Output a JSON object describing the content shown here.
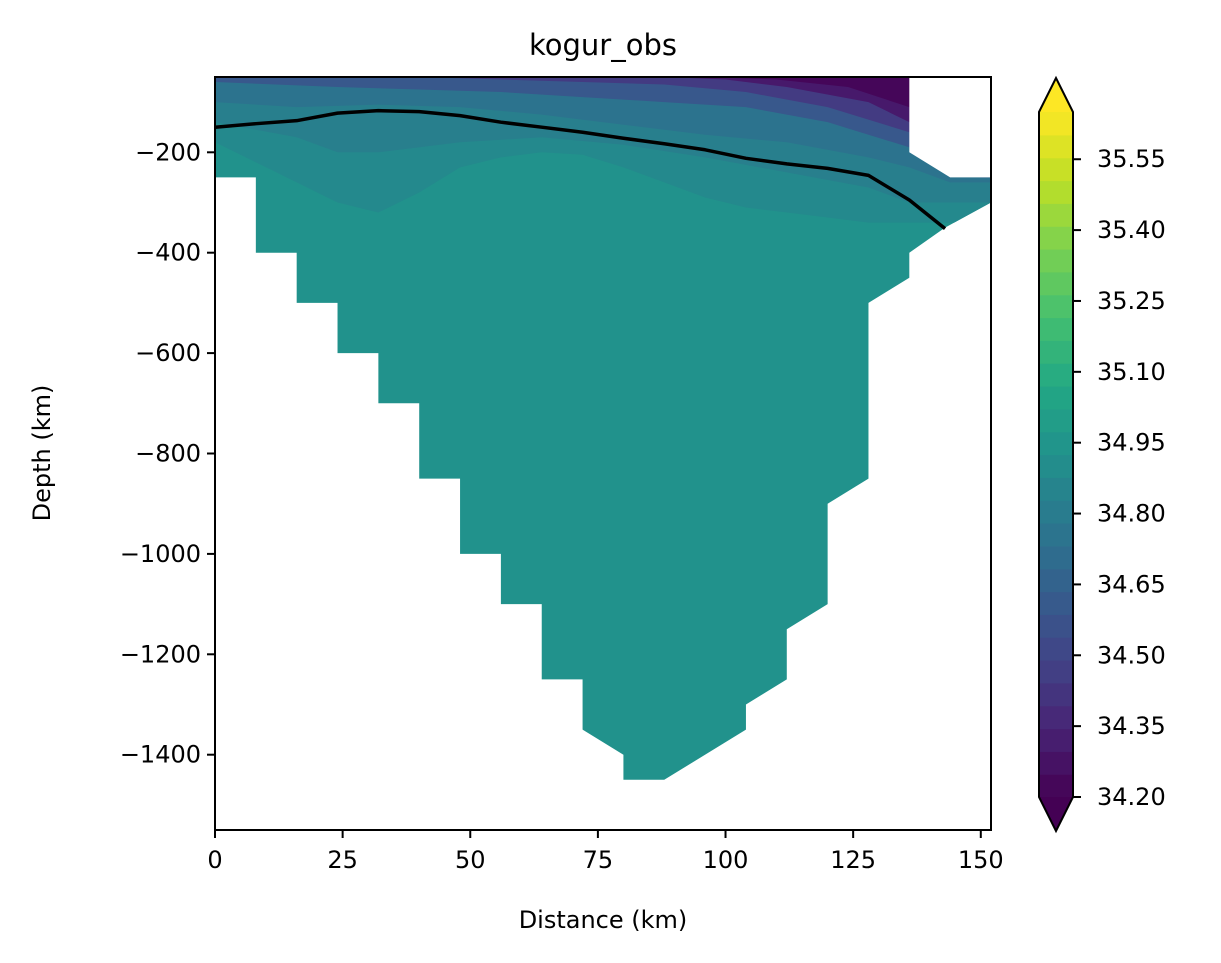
{
  "chart_data": {
    "type": "contourf",
    "title": "kogur_obs",
    "xlabel": "Distance (km)",
    "ylabel": "Depth (km)",
    "xlim": [
      0,
      152
    ],
    "ylim": [
      -1550,
      -50
    ],
    "xticks": [
      0,
      25,
      50,
      75,
      100,
      125,
      150
    ],
    "yticks": [
      -200,
      -400,
      -600,
      -800,
      -1000,
      -1200,
      -1400
    ],
    "colormap": "viridis",
    "colorbar": {
      "vmin": 34.2,
      "vmax": 35.65,
      "ticks": [
        34.2,
        34.35,
        34.5,
        34.65,
        34.8,
        34.95,
        35.1,
        35.25,
        35.4,
        35.55
      ],
      "tick_labels": [
        "34.20",
        "34.35",
        "34.50",
        "34.65",
        "34.80",
        "34.95",
        "35.10",
        "35.25",
        "35.40",
        "35.55"
      ],
      "extend": "both",
      "levels": 30
    },
    "bottom_boundary": [
      [
        0,
        -250
      ],
      [
        8,
        -250
      ],
      [
        8,
        -400
      ],
      [
        16,
        -400
      ],
      [
        16,
        -500
      ],
      [
        24,
        -500
      ],
      [
        24,
        -600
      ],
      [
        32,
        -600
      ],
      [
        32,
        -700
      ],
      [
        40,
        -700
      ],
      [
        40,
        -850
      ],
      [
        48,
        -850
      ],
      [
        48,
        -1000
      ],
      [
        56,
        -1000
      ],
      [
        56,
        -1100
      ],
      [
        64,
        -1100
      ],
      [
        64,
        -1250
      ],
      [
        72,
        -1250
      ],
      [
        72,
        -1350
      ],
      [
        80,
        -1400
      ],
      [
        80,
        -1450
      ],
      [
        88,
        -1450
      ],
      [
        104,
        -1350
      ],
      [
        104,
        -1300
      ],
      [
        112,
        -1250
      ],
      [
        112,
        -1150
      ],
      [
        120,
        -1100
      ],
      [
        120,
        -900
      ],
      [
        128,
        -850
      ],
      [
        128,
        -500
      ],
      [
        136,
        -450
      ],
      [
        136,
        -400
      ],
      [
        143,
        -350
      ],
      [
        152,
        -300
      ]
    ],
    "top_right_gap": [
      [
        136,
        -50
      ],
      [
        152,
        -50
      ],
      [
        152,
        -250
      ],
      [
        144,
        -250
      ],
      [
        136,
        -200
      ]
    ],
    "salinity_layers": [
      {
        "value": 34.93,
        "region": "deep"
      },
      {
        "value": 34.88,
        "top_depth": [
          [
            0,
            -180
          ],
          [
            16,
            -260
          ],
          [
            24,
            -300
          ],
          [
            32,
            -320
          ],
          [
            40,
            -280
          ],
          [
            48,
            -230
          ],
          [
            56,
            -210
          ],
          [
            64,
            -200
          ],
          [
            72,
            -205
          ],
          [
            80,
            -230
          ],
          [
            88,
            -260
          ],
          [
            96,
            -290
          ],
          [
            104,
            -310
          ],
          [
            112,
            -320
          ],
          [
            120,
            -330
          ],
          [
            128,
            -340
          ]
        ]
      },
      {
        "value": 34.82,
        "top_depth": [
          [
            0,
            -140
          ],
          [
            16,
            -170
          ],
          [
            24,
            -200
          ],
          [
            32,
            -200
          ],
          [
            48,
            -180
          ],
          [
            64,
            -170
          ],
          [
            80,
            -185
          ],
          [
            96,
            -210
          ],
          [
            112,
            -240
          ],
          [
            128,
            -270
          ],
          [
            136,
            -300
          ]
        ]
      },
      {
        "value": 34.75,
        "top_depth": [
          [
            0,
            -100
          ],
          [
            16,
            -110
          ],
          [
            32,
            -105
          ],
          [
            48,
            -110
          ],
          [
            64,
            -125
          ],
          [
            80,
            -145
          ],
          [
            96,
            -165
          ],
          [
            112,
            -180
          ],
          [
            128,
            -210
          ],
          [
            136,
            -230
          ],
          [
            144,
            -260
          ]
        ]
      },
      {
        "value": 34.6,
        "top_depth": [
          [
            0,
            -60
          ],
          [
            24,
            -70
          ],
          [
            40,
            -75
          ],
          [
            56,
            -80
          ],
          [
            72,
            -90
          ],
          [
            88,
            -100
          ],
          [
            104,
            -110
          ],
          [
            120,
            -140
          ],
          [
            136,
            -190
          ],
          [
            144,
            -245
          ]
        ]
      },
      {
        "value": 34.45,
        "top_depth": [
          [
            40,
            -50
          ],
          [
            56,
            -55
          ],
          [
            72,
            -60
          ],
          [
            88,
            -65
          ],
          [
            104,
            -80
          ],
          [
            120,
            -110
          ],
          [
            136,
            -160
          ],
          [
            150,
            -250
          ]
        ]
      },
      {
        "value": 34.3,
        "top_depth": [
          [
            72,
            -50
          ],
          [
            88,
            -50
          ],
          [
            100,
            -55
          ],
          [
            112,
            -70
          ],
          [
            128,
            -100
          ],
          [
            136,
            -140
          ]
        ]
      },
      {
        "value": 34.22,
        "top_depth": [
          [
            96,
            -50
          ],
          [
            110,
            -55
          ],
          [
            124,
            -70
          ],
          [
            136,
            -110
          ]
        ]
      }
    ],
    "contour_line": {
      "color": "#000000",
      "x": [
        0,
        8,
        16,
        24,
        32,
        40,
        48,
        56,
        64,
        72,
        80,
        88,
        96,
        104,
        112,
        120,
        128,
        136,
        143
      ],
      "y": [
        -150,
        -143,
        -137,
        -122,
        -117,
        -119,
        -127,
        -140,
        -150,
        -160,
        -172,
        -183,
        -195,
        -212,
        -223,
        -232,
        -246,
        -295,
        -352
      ]
    }
  }
}
